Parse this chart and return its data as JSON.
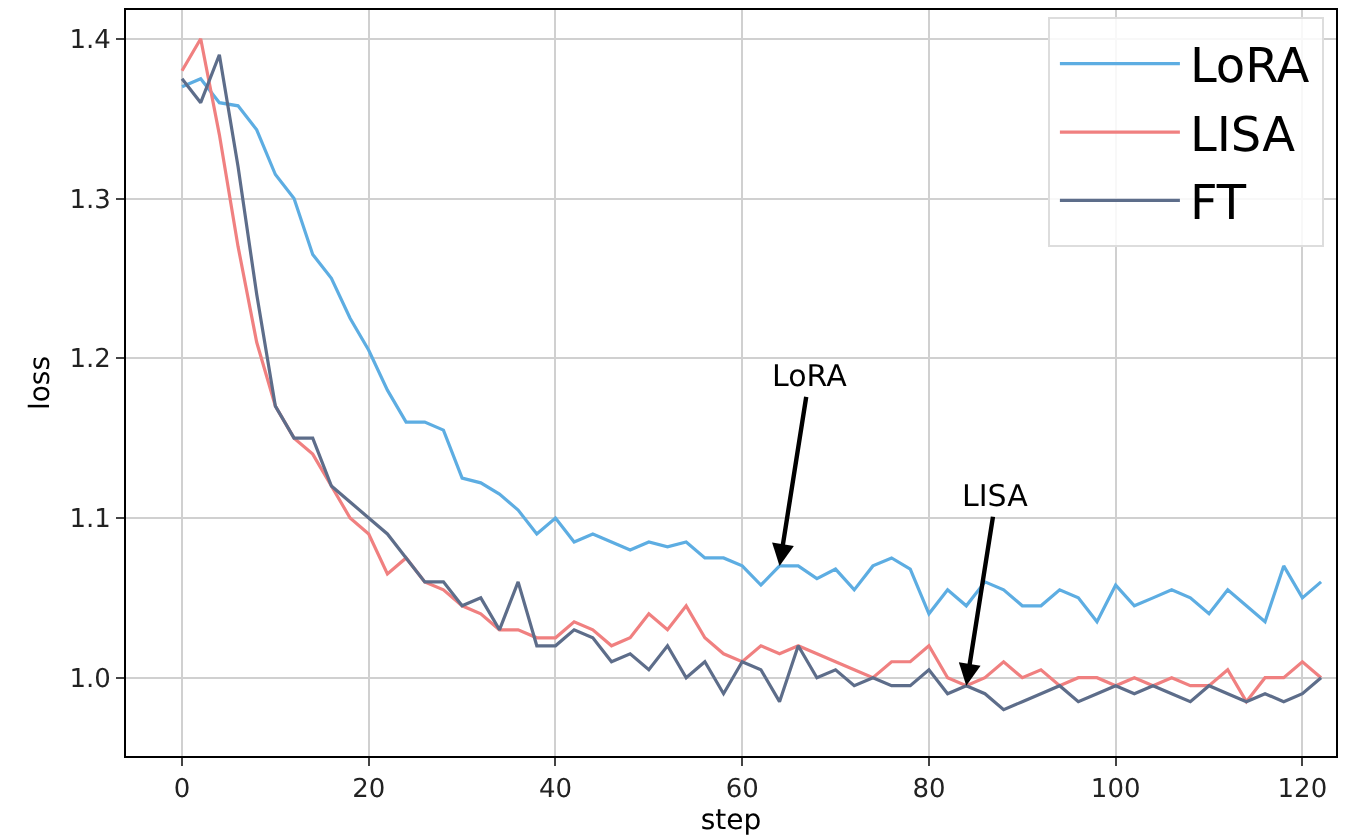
{
  "chart_data": {
    "type": "line",
    "xlabel": "step",
    "ylabel": "loss",
    "x": [
      0,
      2,
      4,
      6,
      8,
      10,
      12,
      14,
      16,
      18,
      20,
      22,
      24,
      26,
      28,
      30,
      32,
      34,
      36,
      38,
      40,
      42,
      44,
      46,
      48,
      50,
      52,
      54,
      56,
      58,
      60,
      62,
      64,
      66,
      68,
      70,
      72,
      74,
      76,
      78,
      80,
      82,
      84,
      86,
      88,
      90,
      92,
      94,
      96,
      98,
      100,
      102,
      104,
      106,
      108,
      110,
      112,
      114,
      116,
      118,
      120,
      122
    ],
    "series": [
      {
        "name": "LoRA",
        "color": "#5dade2",
        "values": [
          1.37,
          1.375,
          1.36,
          1.358,
          1.343,
          1.315,
          1.3,
          1.265,
          1.25,
          1.225,
          1.205,
          1.18,
          1.16,
          1.16,
          1.155,
          1.125,
          1.122,
          1.115,
          1.105,
          1.09,
          1.1,
          1.085,
          1.09,
          1.085,
          1.08,
          1.085,
          1.082,
          1.085,
          1.075,
          1.075,
          1.07,
          1.058,
          1.07,
          1.07,
          1.062,
          1.068,
          1.055,
          1.07,
          1.075,
          1.068,
          1.04,
          1.055,
          1.045,
          1.06,
          1.055,
          1.045,
          1.045,
          1.055,
          1.05,
          1.035,
          1.058,
          1.045,
          1.05,
          1.055,
          1.05,
          1.04,
          1.055,
          1.045,
          1.035,
          1.07,
          1.05,
          1.06
        ]
      },
      {
        "name": "LISA",
        "color": "#f08080",
        "values": [
          1.38,
          1.4,
          1.34,
          1.27,
          1.21,
          1.17,
          1.15,
          1.14,
          1.12,
          1.1,
          1.09,
          1.065,
          1.075,
          1.06,
          1.055,
          1.045,
          1.04,
          1.03,
          1.03,
          1.025,
          1.025,
          1.035,
          1.03,
          1.02,
          1.025,
          1.04,
          1.03,
          1.045,
          1.025,
          1.015,
          1.01,
          1.02,
          1.015,
          1.02,
          1.015,
          1.01,
          1.005,
          1.0,
          1.01,
          1.01,
          1.02,
          1.0,
          0.995,
          1.0,
          1.01,
          1.0,
          1.005,
          0.995,
          1.0,
          1.0,
          0.995,
          1.0,
          0.995,
          1.0,
          0.995,
          0.995,
          1.005,
          0.985,
          1.0,
          1.0,
          1.01,
          1.0
        ]
      },
      {
        "name": "FT",
        "color": "#5d6d8a",
        "values": [
          1.375,
          1.36,
          1.39,
          1.32,
          1.24,
          1.17,
          1.15,
          1.15,
          1.12,
          1.11,
          1.1,
          1.09,
          1.075,
          1.06,
          1.06,
          1.045,
          1.05,
          1.03,
          1.06,
          1.02,
          1.02,
          1.03,
          1.025,
          1.01,
          1.015,
          1.005,
          1.02,
          1.0,
          1.01,
          0.99,
          1.01,
          1.005,
          0.985,
          1.02,
          1.0,
          1.005,
          0.995,
          1.0,
          0.995,
          0.995,
          1.005,
          0.99,
          0.995,
          0.99,
          0.98,
          0.985,
          0.99,
          0.995,
          0.985,
          0.99,
          0.995,
          0.99,
          0.995,
          0.99,
          0.985,
          0.995,
          0.99,
          0.985,
          0.99,
          0.985,
          0.99,
          1.0
        ]
      }
    ],
    "xlim": [
      -6,
      123.6
    ],
    "ylim": [
      0.951,
      1.418
    ],
    "xticks": [
      0,
      20,
      40,
      60,
      80,
      100,
      120
    ],
    "yticks": [
      {
        "value": 1.0,
        "label": "1.0"
      },
      {
        "value": 1.1,
        "label": "1.1"
      },
      {
        "value": 1.2,
        "label": "1.2"
      },
      {
        "value": 1.3,
        "label": "1.3"
      },
      {
        "value": 1.4,
        "label": "1.4"
      }
    ],
    "grid": true,
    "legend": "top right",
    "marker": "none",
    "line_style": "solid",
    "annotations": [
      {
        "text": "LoRA",
        "x": 64,
        "y": 1.07
      },
      {
        "text": "LISA",
        "x": 84,
        "y": 0.995
      }
    ]
  }
}
